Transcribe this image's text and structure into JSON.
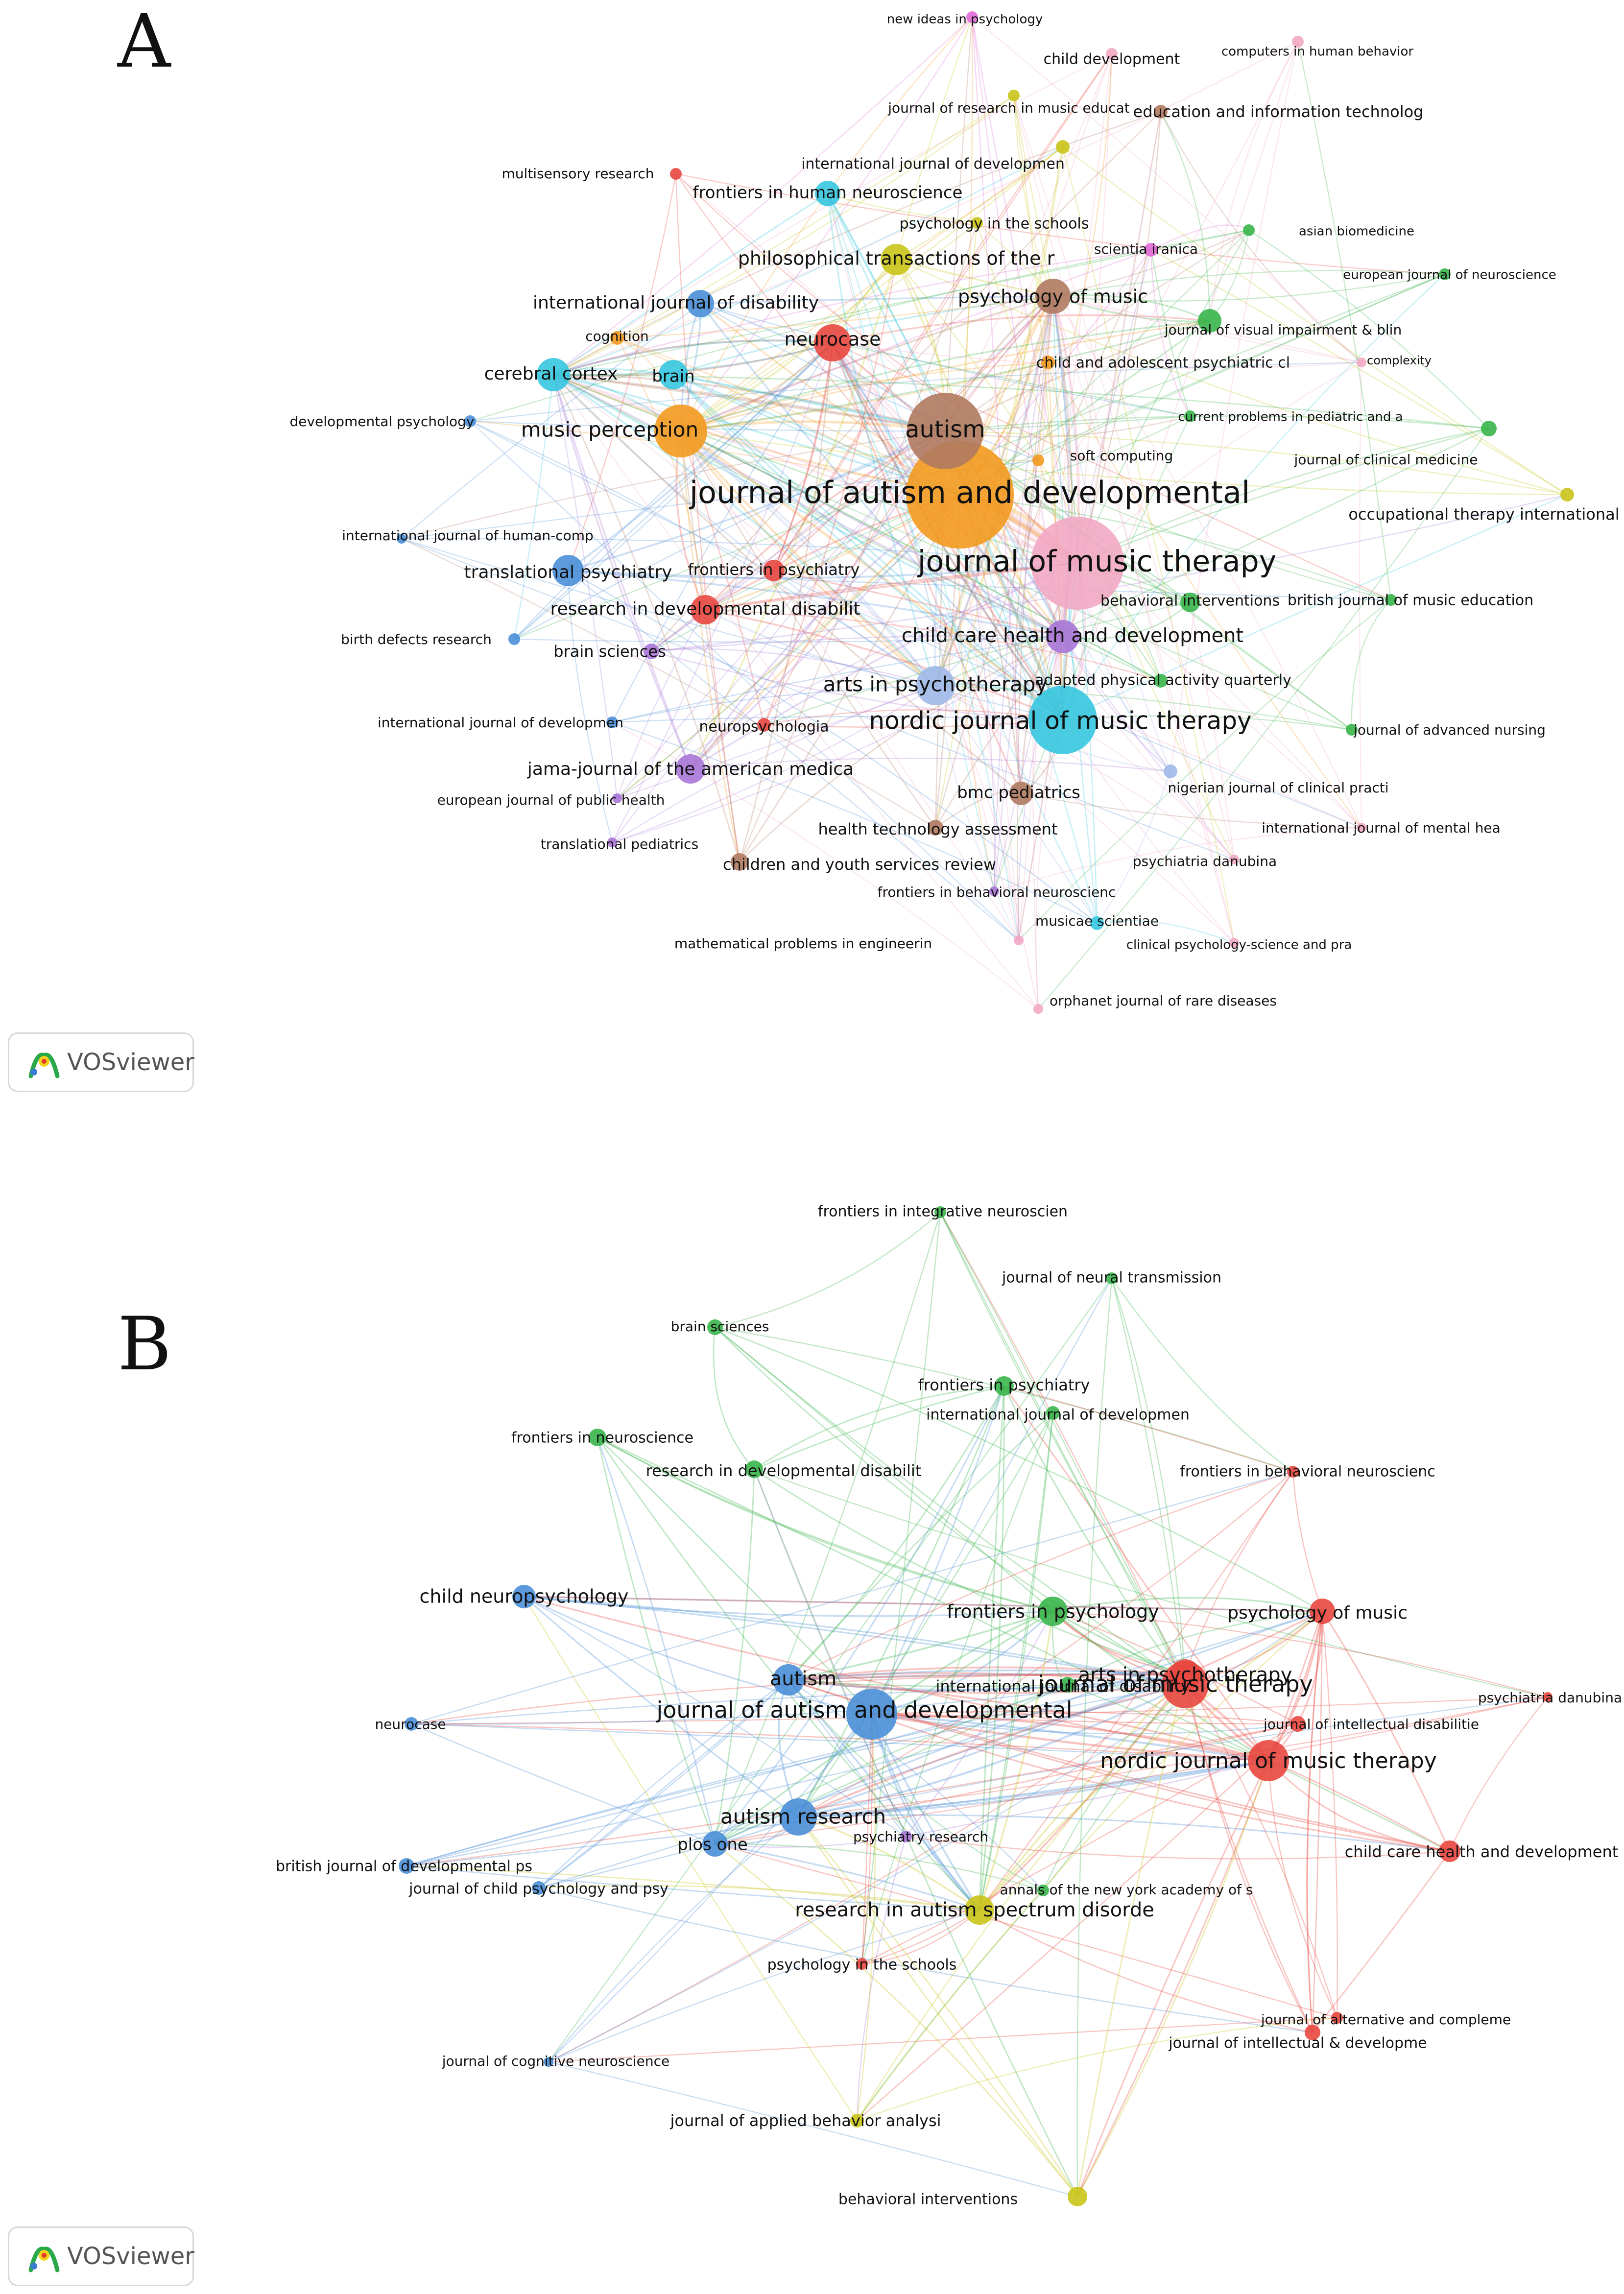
{
  "logo": {
    "text": "VOSviewer"
  },
  "colors": {
    "red": "#e8473f",
    "green": "#39b54a",
    "blue": "#4a8fd8",
    "yellow": "#c9c41a",
    "cyan": "#36c7e0",
    "orange": "#f39a1f",
    "purple": "#a875d6",
    "brown": "#b07a60",
    "pink": "#f2a9c4",
    "lightblue": "#9fb9e8",
    "magenta": "#e06ad6"
  },
  "panel_a": {
    "letter": "A",
    "nodes": [
      {
        "label": "journal of autism and developmental",
        "c": "orange",
        "size": 110
      },
      {
        "label": "journal of music therapy",
        "c": "pink",
        "size": 95
      },
      {
        "label": "autism",
        "c": "brown",
        "size": 78
      },
      {
        "label": "nordic journal of music therapy",
        "c": "cyan",
        "size": 70
      },
      {
        "label": "music perception",
        "c": "orange",
        "size": 54
      },
      {
        "label": "neurocase",
        "c": "red",
        "size": 38
      },
      {
        "label": "cerebral cortex",
        "c": "cyan",
        "size": 34
      },
      {
        "label": "brain",
        "c": "cyan",
        "size": 30
      },
      {
        "label": "international journal of disability",
        "c": "blue",
        "size": 28
      },
      {
        "label": "philosophical transactions of the r",
        "c": "yellow",
        "size": 32
      },
      {
        "label": "frontiers in human neuroscience",
        "c": "cyan",
        "size": 26
      },
      {
        "label": "psychology of music",
        "c": "brown",
        "size": 36
      },
      {
        "label": "translational psychiatry",
        "c": "blue",
        "size": 32
      },
      {
        "label": "research in developmental disabilit",
        "c": "red",
        "size": 30
      },
      {
        "label": "child care health and development",
        "c": "purple",
        "size": 34
      },
      {
        "label": "arts in psychotherapy",
        "c": "lightblue",
        "size": 40
      },
      {
        "label": "jama-journal of the american medica",
        "c": "purple",
        "size": 30
      },
      {
        "label": "bmc pediatrics",
        "c": "brown",
        "size": 24
      },
      {
        "label": "frontiers in psychiatry",
        "c": "red",
        "size": 22
      },
      {
        "label": "behavioral interventions",
        "c": "green",
        "size": 20
      },
      {
        "label": "occupational therapy international",
        "c": "yellow",
        "size": 14
      },
      {
        "label": "new ideas in psychology",
        "c": "magenta",
        "size": 12
      },
      {
        "label": "child development",
        "c": "pink",
        "size": 12
      },
      {
        "label": "computers in human behavior",
        "c": "pink",
        "size": 12
      },
      {
        "label": "journal of research in music educat",
        "c": "yellow",
        "size": 12
      },
      {
        "label": "education and information technolog",
        "c": "brown",
        "size": 14
      },
      {
        "label": "international journal of developmen",
        "c": "yellow",
        "size": 14
      },
      {
        "label": "multisensory research",
        "c": "red",
        "size": 12
      },
      {
        "label": "psychology in the schools",
        "c": "yellow",
        "size": 12
      },
      {
        "label": "scientia iranica",
        "c": "magenta",
        "size": 14
      },
      {
        "label": "asian biomedicine",
        "c": "green",
        "size": 12
      },
      {
        "label": "european journal of neuroscience",
        "c": "green",
        "size": 12
      },
      {
        "label": "cognition",
        "c": "orange",
        "size": 14
      },
      {
        "label": "journal of visual impairment & blin",
        "c": "green",
        "size": 24
      },
      {
        "label": "child and adolescent psychiatric cl",
        "c": "orange",
        "size": 14
      },
      {
        "label": "complexity",
        "c": "pink",
        "size": 10
      },
      {
        "label": "developmental psychology",
        "c": "blue",
        "size": 12
      },
      {
        "label": "current problems in pediatric and a",
        "c": "green",
        "size": 12
      },
      {
        "label": "soft computing",
        "c": "orange",
        "size": 12
      },
      {
        "label": "journal of clinical medicine",
        "c": "green",
        "size": 16
      },
      {
        "label": "international journal of human-comp",
        "c": "blue",
        "size": 10
      },
      {
        "label": "british journal of music education",
        "c": "green",
        "size": 12
      },
      {
        "label": "birth defects research",
        "c": "blue",
        "size": 12
      },
      {
        "label": "brain sciences",
        "c": "purple",
        "size": 16
      },
      {
        "label": "adapted physical activity quarterly",
        "c": "green",
        "size": 14
      },
      {
        "label": "international journal of developmen",
        "c": "blue",
        "size": 12
      },
      {
        "label": "neuropsychologia",
        "c": "red",
        "size": 14
      },
      {
        "label": "journal of advanced nursing",
        "c": "green",
        "size": 12
      },
      {
        "label": "european journal of public health",
        "c": "purple",
        "size": 10
      },
      {
        "label": "nigerian journal of clinical practi",
        "c": "lightblue",
        "size": 14
      },
      {
        "label": "translational pediatrics",
        "c": "purple",
        "size": 10
      },
      {
        "label": "health technology assessment",
        "c": "brown",
        "size": 16
      },
      {
        "label": "international journal of mental hea",
        "c": "pink",
        "size": 10
      },
      {
        "label": "children and youth services review",
        "c": "brown",
        "size": 18
      },
      {
        "label": "psychiatria danubina",
        "c": "pink",
        "size": 10
      },
      {
        "label": "frontiers in behavioral neuroscienc",
        "c": "purple",
        "size": 10
      },
      {
        "label": "musicae scientiae",
        "c": "cyan",
        "size": 14
      },
      {
        "label": "mathematical problems in engineerin",
        "c": "pink",
        "size": 10
      },
      {
        "label": "clinical psychology-science and pra",
        "c": "pink",
        "size": 10
      },
      {
        "label": "orphanet journal of rare diseases",
        "c": "pink",
        "size": 10
      }
    ]
  },
  "panel_b": {
    "letter": "B",
    "nodes": [
      {
        "label": "journal of autism and developmental",
        "c": "blue",
        "size": 52
      },
      {
        "label": "journal of music therapy",
        "c": "red",
        "size": 48
      },
      {
        "label": "nordic journal of music therapy",
        "c": "red",
        "size": 42
      },
      {
        "label": "autism research",
        "c": "blue",
        "size": 38
      },
      {
        "label": "autism",
        "c": "blue",
        "size": 32
      },
      {
        "label": "arts in psychotherapy",
        "c": "red",
        "size": 32
      },
      {
        "label": "frontiers in psychology",
        "c": "green",
        "size": 30
      },
      {
        "label": "research in autism spectrum disorde",
        "c": "yellow",
        "size": 30
      },
      {
        "label": "child neuropsychology",
        "c": "blue",
        "size": 24
      },
      {
        "label": "psychology of music",
        "c": "red",
        "size": 26
      },
      {
        "label": "plos one",
        "c": "blue",
        "size": 26
      },
      {
        "label": "frontiers in integrative neuroscien",
        "c": "green",
        "size": 12
      },
      {
        "label": "journal of neural transmission",
        "c": "green",
        "size": 12
      },
      {
        "label": "brain sciences",
        "c": "green",
        "size": 16
      },
      {
        "label": "frontiers in psychiatry",
        "c": "green",
        "size": 20
      },
      {
        "label": "international journal of developmen",
        "c": "green",
        "size": 14
      },
      {
        "label": "frontiers in neuroscience",
        "c": "green",
        "size": 18
      },
      {
        "label": "research in developmental disabilit",
        "c": "green",
        "size": 18
      },
      {
        "label": "frontiers in behavioral neuroscienc",
        "c": "red",
        "size": 12
      },
      {
        "label": "psychiatria danubina",
        "c": "red",
        "size": 10
      },
      {
        "label": "international journal of disability",
        "c": "green",
        "size": 16
      },
      {
        "label": "neurocase",
        "c": "blue",
        "size": 14
      },
      {
        "label": "journal of intellectual disabilitie",
        "c": "red",
        "size": 16
      },
      {
        "label": "child care health and development",
        "c": "red",
        "size": 22
      },
      {
        "label": "british journal of developmental ps",
        "c": "blue",
        "size": 16
      },
      {
        "label": "psychiatry research",
        "c": "purple",
        "size": 12
      },
      {
        "label": "annals of the new york academy of s",
        "c": "green",
        "size": 12
      },
      {
        "label": "journal of child psychology and psy",
        "c": "blue",
        "size": 14
      },
      {
        "label": "psychology in the schools",
        "c": "red",
        "size": 12
      },
      {
        "label": "journal of alternative and compleme",
        "c": "red",
        "size": 12
      },
      {
        "label": "journal of intellectual & developme",
        "c": "red",
        "size": 16
      },
      {
        "label": "journal of cognitive neuroscience",
        "c": "blue",
        "size": 10
      },
      {
        "label": "journal of applied behavior analysi",
        "c": "yellow",
        "size": 14
      },
      {
        "label": "behavioral interventions",
        "c": "yellow",
        "size": 20
      }
    ]
  }
}
